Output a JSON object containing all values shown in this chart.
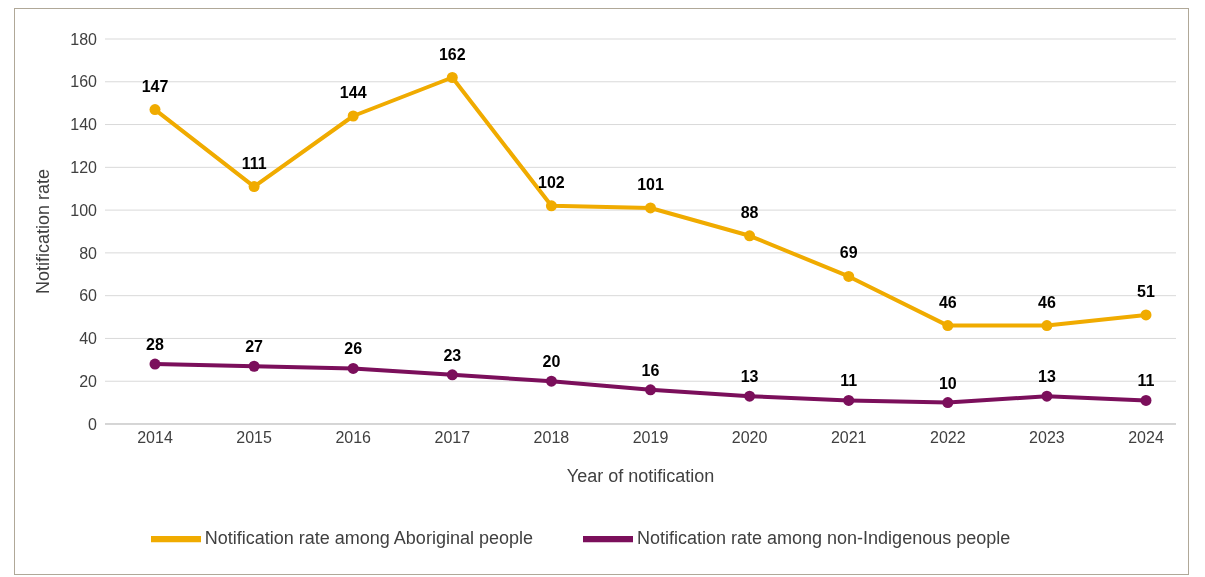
{
  "chart_data": {
    "type": "line",
    "xlabel": "Year of notification",
    "ylabel": "Notification rate",
    "categories": [
      "2014",
      "2015",
      "2016",
      "2017",
      "2018",
      "2019",
      "2020",
      "2021",
      "2022",
      "2023",
      "2024"
    ],
    "series": [
      {
        "name": "Notification rate among Aboriginal people",
        "color": "#f0ab00",
        "values": [
          147,
          111,
          144,
          162,
          102,
          101,
          88,
          69,
          46,
          46,
          51
        ]
      },
      {
        "name": "Notification rate among non-Indigenous people",
        "color": "#7b0f5b",
        "values": [
          28,
          27,
          26,
          23,
          20,
          16,
          13,
          11,
          10,
          13,
          11
        ]
      }
    ],
    "ylim": [
      0,
      180
    ],
    "yticks": [
      0,
      20,
      40,
      60,
      80,
      100,
      120,
      140,
      160,
      180
    ],
    "grid": "y",
    "legend": "bottom",
    "marker": "circle",
    "line_style": "solid",
    "data_labels": true
  }
}
